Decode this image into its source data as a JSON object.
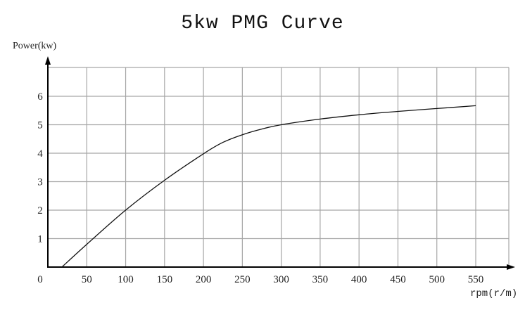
{
  "chart_data": {
    "type": "line",
    "title": "5kw PMG Curve",
    "xlabel": "rpm(r/m)",
    "ylabel": "Power(kw)",
    "xlim": [
      0,
      590
    ],
    "ylim": [
      0,
      7
    ],
    "grid": true,
    "legend": null,
    "x_ticks": [
      0,
      50,
      100,
      150,
      200,
      250,
      300,
      350,
      400,
      450,
      500,
      550
    ],
    "y_ticks": [
      1,
      2,
      3,
      4,
      5,
      6
    ],
    "series": [
      {
        "name": "Power",
        "color": "#111111",
        "x": [
          18,
          50,
          100,
          150,
          200,
          225,
          250,
          275,
          300,
          350,
          400,
          450,
          500,
          550
        ],
        "y": [
          0,
          0.8,
          2.0,
          3.05,
          3.98,
          4.38,
          4.65,
          4.85,
          5.0,
          5.2,
          5.35,
          5.47,
          5.57,
          5.67
        ]
      }
    ]
  },
  "colors": {
    "axis": "#000000",
    "grid": "#a6a6a6",
    "line": "#111111"
  }
}
